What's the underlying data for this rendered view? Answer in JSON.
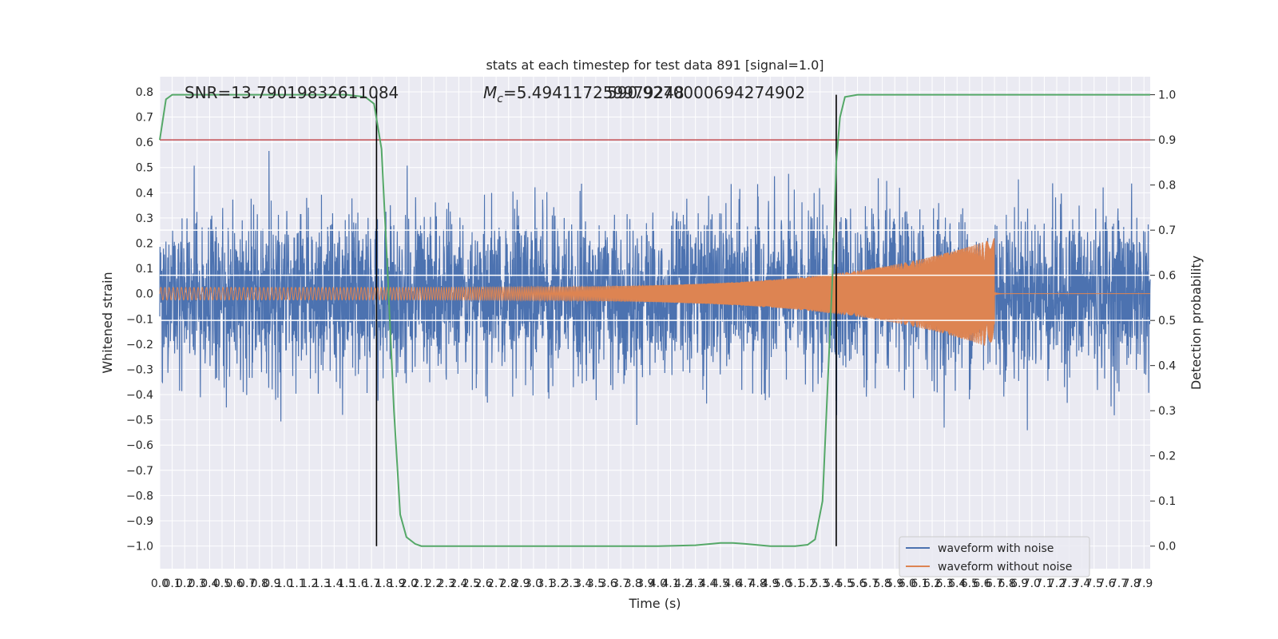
{
  "chart_data": {
    "type": "line",
    "title": "stats at each timestep for test data 891 [signal=1.0]",
    "xlabel": "Time (s)",
    "ylabel": "Whitened strain",
    "y2label": "Detection probability",
    "xlim": [
      0,
      7.95
    ],
    "ylim": [
      -1.09,
      0.86
    ],
    "y2lim": [
      -0.05,
      1.04
    ],
    "x_ticks": [
      0.0,
      0.1,
      0.2,
      0.3,
      0.4,
      0.5,
      0.6,
      0.7,
      0.8,
      0.9,
      1.0,
      1.1,
      1.2,
      1.3,
      1.4,
      1.5,
      1.6,
      1.7,
      1.8,
      1.9,
      2.0,
      2.1,
      2.2,
      2.3,
      2.4,
      2.5,
      2.6,
      2.7,
      2.8,
      2.9,
      3.0,
      3.1,
      3.2,
      3.3,
      3.4,
      3.5,
      3.6,
      3.7,
      3.8,
      3.9,
      4.0,
      4.1,
      4.2,
      4.3,
      4.4,
      4.5,
      4.6,
      4.7,
      4.8,
      4.9,
      5.0,
      5.1,
      5.2,
      5.3,
      5.4,
      5.5,
      5.6,
      5.7,
      5.8,
      5.9,
      6.0,
      6.1,
      6.2,
      6.3,
      6.4,
      6.5,
      6.6,
      6.7,
      6.8,
      6.9,
      7.0,
      7.1,
      7.2,
      7.3,
      7.4,
      7.5,
      7.6,
      7.7,
      7.8,
      7.9
    ],
    "x_tick_labels": [
      "0.0",
      "0.1",
      "0.2",
      "0.3",
      "0.4",
      "0.5",
      "0.6",
      "0.7",
      "0.8",
      "0.9",
      "1.0",
      "1.1",
      "1.2",
      "1.3",
      "1.4",
      "1.5",
      "1.6",
      "1.7",
      "1.8",
      "1.9",
      "2.0",
      "2.1",
      "2.2",
      "2.3",
      "2.4",
      "2.5",
      "2.6",
      "2.7",
      "2.8",
      "2.9",
      "3.0",
      "3.1",
      "3.2",
      "3.3",
      "3.4",
      "3.5",
      "3.6",
      "3.7",
      "3.8",
      "3.9",
      "4.0",
      "4.1",
      "4.2",
      "4.3",
      "4.4",
      "4.5",
      "4.6",
      "4.7",
      "4.8",
      "4.9",
      "5.0",
      "5.1",
      "5.2",
      "5.3",
      "5.4",
      "5.5",
      "5.6",
      "5.7",
      "5.8",
      "5.9",
      "6.0",
      "6.1",
      "6.2",
      "6.3",
      "6.4",
      "6.5",
      "6.6",
      "6.7",
      "6.8",
      "6.9",
      "7.0",
      "7.1",
      "7.2",
      "7.3",
      "7.4",
      "7.5",
      "7.6",
      "7.7",
      "7.8",
      "7.9"
    ],
    "y_ticks": [
      -1.0,
      -0.9,
      -0.8,
      -0.7,
      -0.6,
      -0.5,
      -0.4,
      -0.3,
      -0.2,
      -0.1,
      0.0,
      0.1,
      0.2,
      0.3,
      0.4,
      0.5,
      0.6,
      0.7,
      0.8
    ],
    "y_tick_labels": [
      "−1.0",
      "−0.9",
      "−0.8",
      "−0.7",
      "−0.6",
      "−0.5",
      "−0.4",
      "−0.3",
      "−0.2",
      "−0.1",
      "0.0",
      "0.1",
      "0.2",
      "0.3",
      "0.4",
      "0.5",
      "0.6",
      "0.7",
      "0.8"
    ],
    "y2_ticks": [
      0.0,
      0.1,
      0.2,
      0.3,
      0.4,
      0.5,
      0.6,
      0.7,
      0.8,
      0.9,
      1.0
    ],
    "y2_tick_labels": [
      "0.0",
      "0.1",
      "0.2",
      "0.3",
      "0.4",
      "0.5",
      "0.6",
      "0.7",
      "0.8",
      "0.9",
      "1.0"
    ],
    "grid": true,
    "series": [
      {
        "name": "waveform with noise",
        "axis": "left",
        "color": "#4c72b0",
        "noise_std": 0.16,
        "noise_clip": [
          -1.0,
          0.77
        ],
        "samples": 4000
      },
      {
        "name": "waveform without noise",
        "axis": "left",
        "color": "#dd8452",
        "chirp_start": 0.0,
        "merger_time": 6.7,
        "amplitude_start": 0.025,
        "amplitude_at_merger": 0.22,
        "ringdown_amplitude": 0.005
      },
      {
        "axis": "right",
        "color": "#55a868",
        "x": [
          0.0,
          0.05,
          0.1,
          0.2,
          0.5,
          1.0,
          1.5,
          1.65,
          1.72,
          1.78,
          1.83,
          1.88,
          1.93,
          1.98,
          2.05,
          2.1,
          2.2,
          2.3,
          2.5,
          3.0,
          3.5,
          4.0,
          4.3,
          4.5,
          4.6,
          4.7,
          4.9,
          5.1,
          5.2,
          5.26,
          5.32,
          5.36,
          5.4,
          5.43,
          5.46,
          5.5,
          5.6,
          5.8,
          6.0,
          7.0,
          7.95
        ],
        "y": [
          0.9,
          0.99,
          1.0,
          1.0,
          1.0,
          1.0,
          1.0,
          0.995,
          0.98,
          0.88,
          0.6,
          0.3,
          0.07,
          0.02,
          0.005,
          0.0,
          0.0,
          0.0,
          0.0,
          0.0,
          0.0,
          0.0,
          0.002,
          0.007,
          0.007,
          0.005,
          0.0,
          0.0,
          0.003,
          0.015,
          0.1,
          0.35,
          0.6,
          0.85,
          0.95,
          0.995,
          1.0,
          1.0,
          1.0,
          1.0,
          1.0
        ]
      }
    ],
    "horizontal_lines": [
      {
        "axis": "right",
        "value": 0.9,
        "color": "#c44e52"
      },
      {
        "axis": "right",
        "value": 0.7,
        "color": "#ffffff"
      },
      {
        "axis": "right",
        "value": 0.6,
        "color": "#ffffff"
      },
      {
        "axis": "right",
        "value": 0.5,
        "color": "#ffffff"
      }
    ],
    "vertical_lines": [
      {
        "value": 1.74,
        "color": "#000000"
      },
      {
        "value": 5.43,
        "color": "#000000"
      }
    ],
    "annotations": [
      {
        "text": "SNR=13.79019832611084"
      },
      {
        "text_prefix": "M",
        "text_subscript": "c",
        "text": "=5.494117259979248"
      },
      {
        "text": "590.9270000694274902"
      }
    ],
    "legend": {
      "placement": "lower-right",
      "entries": [
        "waveform with noise",
        "waveform without noise"
      ]
    }
  }
}
